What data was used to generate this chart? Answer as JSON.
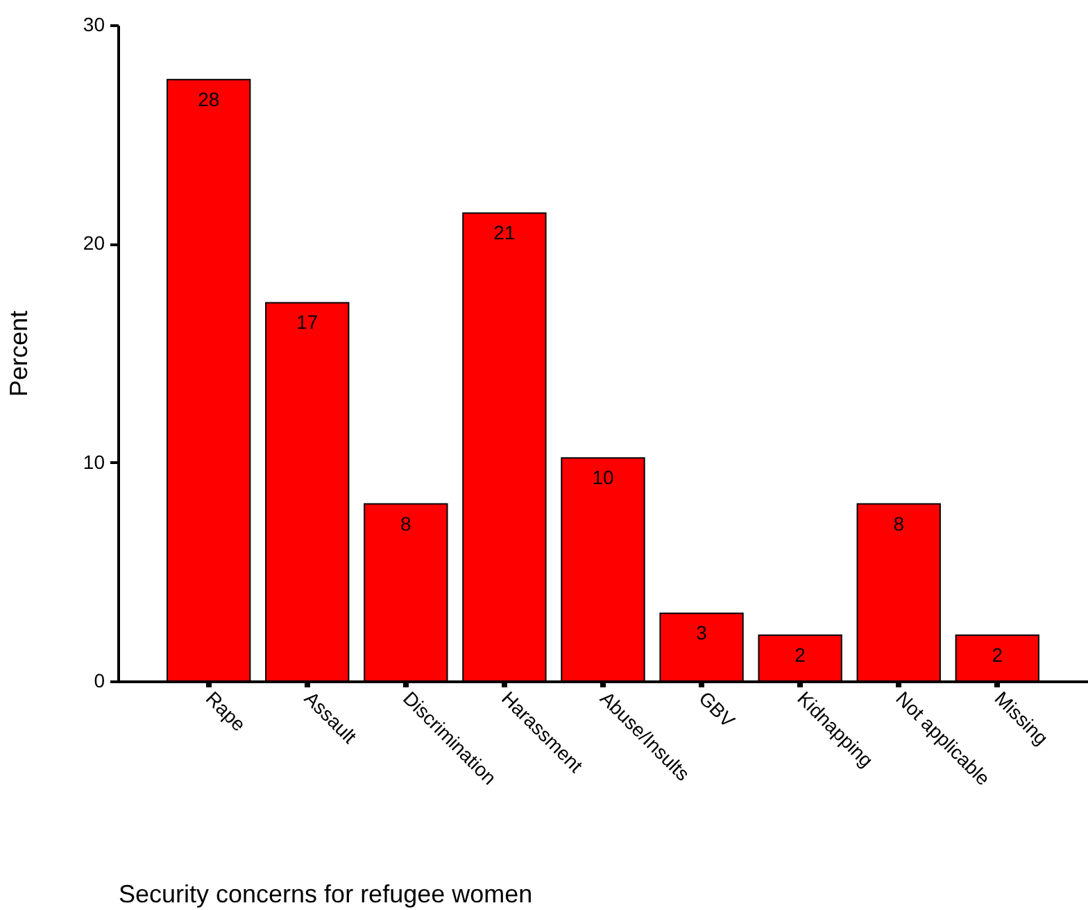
{
  "chart_data": {
    "type": "bar",
    "xlabel": "Security concerns for refugee women",
    "ylabel": "Percent",
    "categories": [
      "Rape",
      "Assault",
      "Discrimination",
      "Harassment",
      "Abuse/Insults",
      "GBV",
      "Kidnapping",
      "Not applicable",
      "Missing"
    ],
    "values": [
      27.5,
      17.3,
      8.1,
      21.4,
      10.2,
      3.1,
      2.1,
      8.1,
      2.1
    ],
    "value_labels": [
      "28",
      "17",
      "8",
      "21",
      "10",
      "3",
      "2",
      "8",
      "2"
    ],
    "color": "#ff0000",
    "ylim": [
      0,
      30
    ],
    "yticks": [
      0,
      10,
      20,
      30
    ],
    "grid": false
  }
}
